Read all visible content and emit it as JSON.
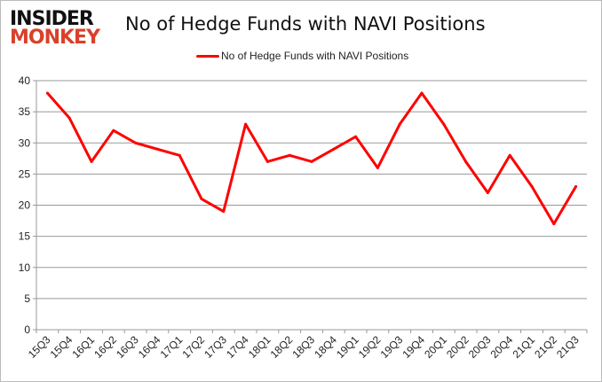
{
  "logo": {
    "line1": "INSIDER",
    "line2": "MONKEY"
  },
  "chart_data": {
    "type": "line",
    "title": "No of Hedge Funds with NAVI Positions",
    "categories": [
      "15Q3",
      "15Q4",
      "16Q1",
      "16Q2",
      "16Q3",
      "16Q4",
      "17Q1",
      "17Q2",
      "17Q3",
      "17Q4",
      "18Q1",
      "18Q2",
      "18Q3",
      "18Q4",
      "19Q1",
      "19Q2",
      "19Q3",
      "19Q4",
      "20Q1",
      "20Q2",
      "20Q3",
      "20Q4",
      "21Q1",
      "21Q2",
      "21Q3"
    ],
    "series": [
      {
        "name": "No of Hedge Funds with NAVI Positions",
        "color": "#ff0000",
        "values": [
          38,
          34,
          27,
          32,
          30,
          29,
          28,
          21,
          19,
          33,
          27,
          28,
          27,
          29,
          31,
          26,
          33,
          38,
          33,
          27,
          22,
          28,
          23,
          17,
          23
        ]
      }
    ],
    "ylim": [
      0,
      40
    ],
    "yticks": [
      0,
      5,
      10,
      15,
      20,
      25,
      30,
      35,
      40
    ],
    "grid": true,
    "legend": "top"
  }
}
